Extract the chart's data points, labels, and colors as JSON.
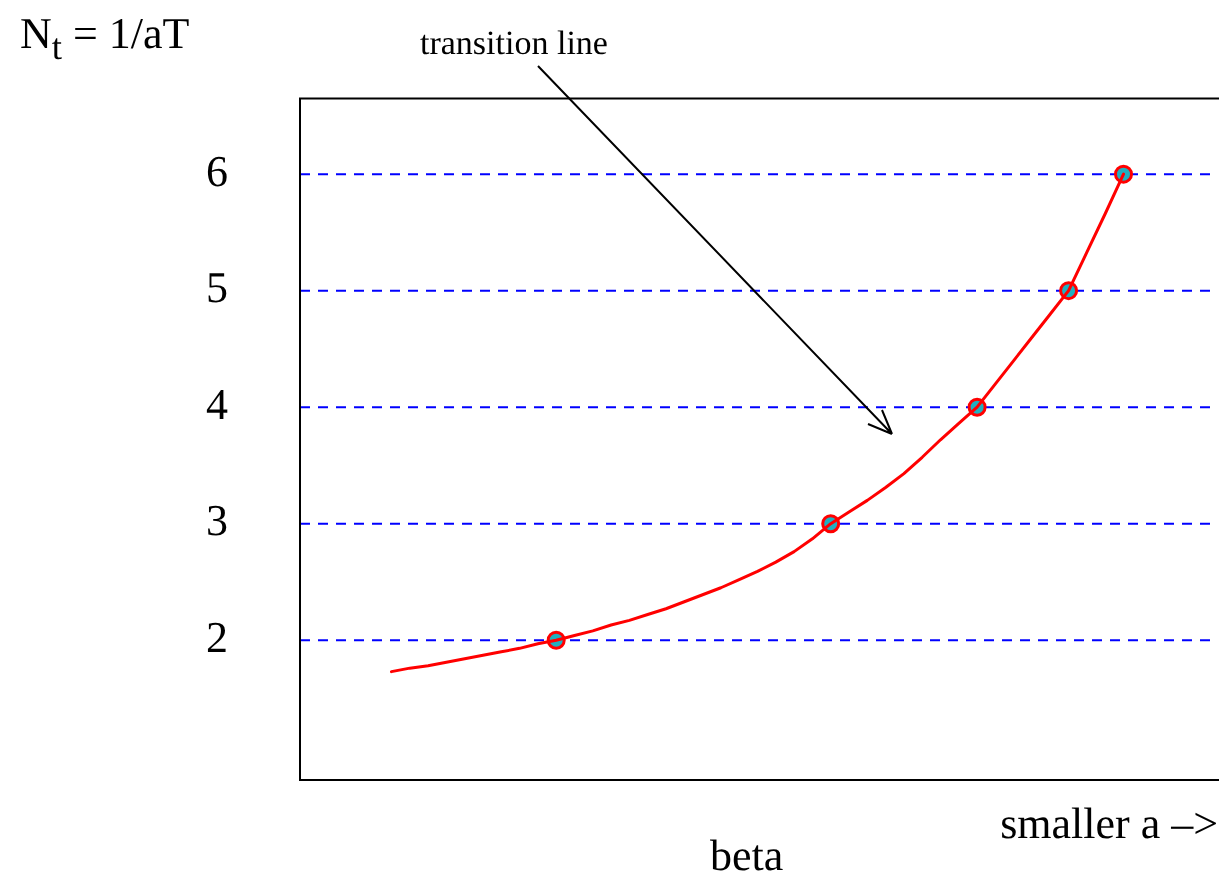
{
  "chart_data": {
    "type": "line",
    "title": "N$_{t}$ = 1/aT",
    "xlabel": "beta",
    "categories": [
      null,
      null,
      null,
      null,
      null,
      null,
      null,
      null,
      null,
      null,
      null,
      null,
      null,
      null,
      null,
      null,
      null,
      null,
      null,
      null,
      null,
      null,
      null,
      null,
      null,
      null,
      null,
      null,
      null,
      null,
      null,
      null,
      null,
      null,
      null,
      null,
      null,
      null,
      null,
      null,
      null,
      null,
      null,
      null,
      null,
      null,
      null,
      null,
      null,
      null,
      null
    ],
    "series": [
      {
        "type": "line",
        "color": "#ff0000",
        "marker": "none",
        "values": [
          null,
          null,
          null,
          null,
          null,
          1.73,
          1.76,
          1.78,
          1.81,
          1.84,
          1.87,
          1.9,
          1.93,
          1.97,
          2,
          2.04,
          2.08,
          2.13,
          2.17,
          2.22,
          2.27,
          2.33,
          2.39,
          2.45,
          2.52,
          2.59,
          2.67,
          2.76,
          2.87,
          3,
          3.1,
          3.2,
          3.31,
          3.43,
          3.57,
          3.72,
          3.86,
          4,
          4.2,
          4.4,
          4.6,
          4.8,
          5,
          5.33,
          5.66,
          6,
          null,
          null,
          null,
          null,
          null
        ]
      },
      {
        "type": "scatter",
        "color": "#20b0c0",
        "marker": "circle",
        "values": [
          null,
          null,
          null,
          null,
          null,
          null,
          null,
          null,
          null,
          null,
          null,
          null,
          null,
          null,
          2,
          null,
          null,
          null,
          null,
          null,
          null,
          null,
          null,
          null,
          null,
          null,
          null,
          null,
          null,
          3,
          null,
          null,
          null,
          null,
          null,
          null,
          null,
          4,
          null,
          null,
          null,
          null,
          5,
          null,
          null,
          6,
          null,
          null,
          null,
          null,
          null
        ]
      }
    ],
    "ylim": [
      0.8,
      6.65
    ],
    "yticks": [
      2,
      3,
      4,
      5,
      6
    ],
    "tick_labels": "y",
    "grid": false,
    "legend": false,
    "ref_lines": [
      {
        "axis": "y",
        "value": 2,
        "color": "#0000ff",
        "line_style": "dashed"
      },
      {
        "axis": "y",
        "value": 3,
        "color": "#0000ff",
        "line_style": "dashed"
      },
      {
        "axis": "y",
        "value": 4,
        "color": "#0000ff",
        "line_style": "dashed"
      },
      {
        "axis": "y",
        "value": 5,
        "color": "#0000ff",
        "line_style": "dashed"
      },
      {
        "axis": "y",
        "value": 6,
        "color": "#0000ff",
        "line_style": "dashed"
      }
    ],
    "annotations": [
      "transition line",
      "smaller a –>"
    ]
  }
}
